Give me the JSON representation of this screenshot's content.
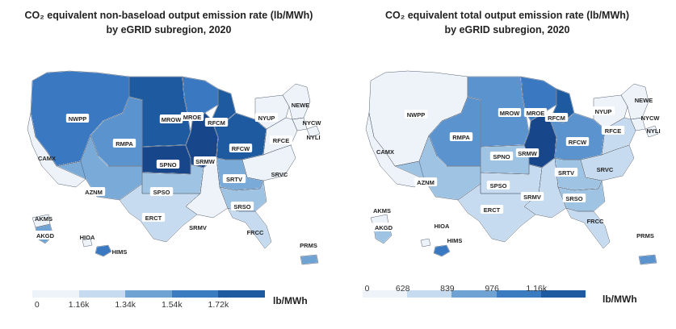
{
  "maps": [
    {
      "id": "non-baseload",
      "title_line1": "CO₂ equivalent non-baseload output emission rate (lb/MWh)",
      "title_line2": "by eGRID subregion, 2020",
      "legend": {
        "unit": "lb/MWh",
        "ticks": [
          "0",
          "1.16k",
          "1.34k",
          "1.54k",
          "1.72k"
        ],
        "colors": [
          "#eef3fa",
          "#c6dbef",
          "#6ea3d3",
          "#3a7cbf",
          "#1e5aa0"
        ]
      },
      "regions": {
        "NWPP": "#3a78c2",
        "CAMX": "#eef3fa",
        "RMPA": "#5b93cf",
        "AZNM": "#7aaad7",
        "MROW": "#1e5aa0",
        "SPNO": "#17468a",
        "SRMW": "#17468a",
        "MROE": "#3a78c2",
        "RFCM": "#1e5aa0",
        "RFCW": "#1e5aa0",
        "NYUP": "#eef3fa",
        "NEWE": "#eef3fa",
        "NYCW": "#eef3fa",
        "NYLI": "#eef3fa",
        "RFCE": "#eef3fa",
        "SRVC": "#eef3fa",
        "SRTV": "#7aaad7",
        "SRSO": "#9fc3e3",
        "SPSO": "#9fc3e3",
        "ERCT": "#c6dbef",
        "SRMV": "#eef3fa",
        "FRCC": "#c6dbef",
        "AKMS": "#eef3fa",
        "AKGD": "#6ea3d3",
        "HIOA": "#eef3fa",
        "HIMS": "#3a78c2",
        "PRMS": "#6ea3d3"
      },
      "labels": [
        "NWPP",
        "CAMX",
        "RMPA",
        "AZNM",
        "MROW",
        "SPNO",
        "SRMW",
        "MROE",
        "RFCM",
        "RFCW",
        "NYUP",
        "NEWE",
        "NYCW",
        "NYLI",
        "RFCE",
        "SRVC",
        "SRTV",
        "SRSO",
        "SPSO",
        "ERCT",
        "SRMV",
        "FRCC",
        "AKMS",
        "AKGD",
        "HIOA",
        "HIMS",
        "PRMS"
      ]
    },
    {
      "id": "total",
      "title_line1": "CO₂ equivalent total output emission rate (lb/MWh)",
      "title_line2": "by eGRID subregion, 2020",
      "legend": {
        "unit": "lb/MWh",
        "ticks": [
          "0",
          "628",
          "839",
          "976",
          "1.16k"
        ],
        "colors": [
          "#eef3fa",
          "#c6dbef",
          "#6ea3d3",
          "#3a7cbf",
          "#1e5aa0"
        ]
      },
      "regions": {
        "NWPP": "#eef3fa",
        "CAMX": "#eef3fa",
        "RMPA": "#5b93cf",
        "AZNM": "#9fc3e3",
        "MROW": "#5b93cf",
        "SPNO": "#9fc3e3",
        "SRMW": "#17468a",
        "MROE": "#3a78c2",
        "RFCM": "#1e5aa0",
        "RFCW": "#5b93cf",
        "NYUP": "#eef3fa",
        "NEWE": "#eef3fa",
        "NYCW": "#eef3fa",
        "NYLI": "#eef3fa",
        "RFCE": "#c6dbef",
        "SRVC": "#c6dbef",
        "SRTV": "#9fc3e3",
        "SRSO": "#9fc3e3",
        "SPSO": "#c6dbef",
        "ERCT": "#c6dbef",
        "SRMV": "#c6dbef",
        "FRCC": "#c6dbef",
        "AKMS": "#eef3fa",
        "AKGD": "#9fc3e3",
        "HIOA": "#eef3fa",
        "HIMS": "#3a78c2",
        "PRMS": "#5b93cf"
      },
      "labels": [
        "NWPP",
        "CAMX",
        "RMPA",
        "AZNM",
        "MROW",
        "SPNO",
        "SRMW",
        "MROE",
        "RFCM",
        "RFCW",
        "NYUP",
        "NEWE",
        "NYCW",
        "NYLI",
        "RFCE",
        "SRVC",
        "SRTV",
        "SRSO",
        "SPSO",
        "ERCT",
        "SRMV",
        "FRCC",
        "AKMS",
        "AKGD",
        "HIOA",
        "HIMS",
        "PRMS"
      ]
    }
  ]
}
